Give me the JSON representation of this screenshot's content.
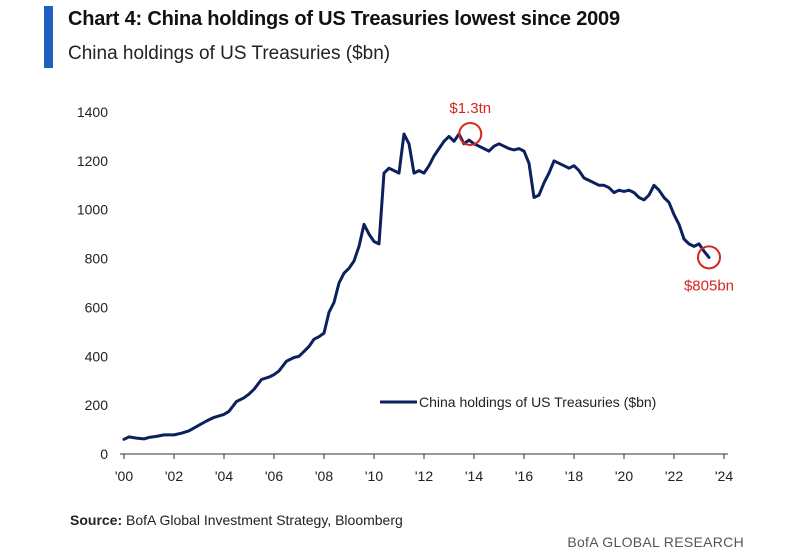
{
  "header": {
    "title": "Chart 4: China holdings of US Treasuries lowest since 2009",
    "subtitle": "China holdings of US Treasuries ($bn)"
  },
  "footer": {
    "source_label": "Source:",
    "source_text": "BofA Global Investment Strategy, Bloomberg",
    "brand": "BofA GLOBAL RESEARCH"
  },
  "colors": {
    "accent": "#1f5fbf",
    "series": "#0c1f5e",
    "annotation": "#d7261e"
  },
  "chart_data": {
    "type": "line",
    "title": "China holdings of US Treasuries lowest since 2009",
    "xlabel": "",
    "ylabel": "China holdings of US Treasuries ($bn)",
    "xlim": [
      2000,
      2024.5
    ],
    "ylim": [
      0,
      1400
    ],
    "yticks": [
      0,
      200,
      400,
      600,
      800,
      1000,
      1200,
      1400
    ],
    "xticks": [
      {
        "value": 2000,
        "label": "'00"
      },
      {
        "value": 2002,
        "label": "'02"
      },
      {
        "value": 2004,
        "label": "'04"
      },
      {
        "value": 2006,
        "label": "'06"
      },
      {
        "value": 2008,
        "label": "'08"
      },
      {
        "value": 2010,
        "label": "'10"
      },
      {
        "value": 2012,
        "label": "'12"
      },
      {
        "value": 2014,
        "label": "'14"
      },
      {
        "value": 2016,
        "label": "'16"
      },
      {
        "value": 2018,
        "label": "'18"
      },
      {
        "value": 2020,
        "label": "'20"
      },
      {
        "value": 2022,
        "label": "'22"
      },
      {
        "value": 2024,
        "label": "'24"
      }
    ],
    "legend": {
      "label": "China holdings of US Treasuries ($bn)",
      "position": "lower-right"
    },
    "series": [
      {
        "name": "China holdings of US Treasuries ($bn)",
        "x": [
          2000.0,
          2000.2,
          2000.5,
          2000.8,
          2001.0,
          2001.3,
          2001.6,
          2002.0,
          2002.3,
          2002.6,
          2003.0,
          2003.3,
          2003.6,
          2004.0,
          2004.2,
          2004.5,
          2004.8,
          2005.0,
          2005.2,
          2005.5,
          2005.8,
          2006.0,
          2006.2,
          2006.5,
          2006.8,
          2007.0,
          2007.2,
          2007.4,
          2007.6,
          2007.8,
          2008.0,
          2008.2,
          2008.4,
          2008.6,
          2008.8,
          2009.0,
          2009.2,
          2009.4,
          2009.6,
          2009.8,
          2010.0,
          2010.2,
          2010.4,
          2010.6,
          2010.8,
          2011.0,
          2011.2,
          2011.4,
          2011.6,
          2011.8,
          2012.0,
          2012.2,
          2012.4,
          2012.6,
          2012.8,
          2013.0,
          2013.2,
          2013.4,
          2013.6,
          2013.8,
          2014.0,
          2014.2,
          2014.4,
          2014.6,
          2014.8,
          2015.0,
          2015.2,
          2015.4,
          2015.6,
          2015.8,
          2016.0,
          2016.2,
          2016.4,
          2016.6,
          2016.8,
          2017.0,
          2017.2,
          2017.4,
          2017.6,
          2017.8,
          2018.0,
          2018.2,
          2018.4,
          2018.6,
          2018.8,
          2019.0,
          2019.2,
          2019.4,
          2019.6,
          2019.8,
          2020.0,
          2020.2,
          2020.4,
          2020.6,
          2020.8,
          2021.0,
          2021.2,
          2021.4,
          2021.6,
          2021.8,
          2022.0,
          2022.2,
          2022.4,
          2022.6,
          2022.8,
          2023.0,
          2023.2,
          2023.4
        ],
        "values": [
          60,
          70,
          65,
          62,
          68,
          72,
          78,
          78,
          85,
          95,
          118,
          135,
          150,
          162,
          175,
          215,
          230,
          245,
          265,
          305,
          315,
          325,
          340,
          380,
          395,
          400,
          420,
          440,
          470,
          480,
          495,
          580,
          620,
          700,
          740,
          760,
          790,
          850,
          940,
          900,
          870,
          860,
          1150,
          1170,
          1160,
          1150,
          1310,
          1270,
          1150,
          1160,
          1150,
          1180,
          1220,
          1250,
          1280,
          1300,
          1280,
          1310,
          1270,
          1285,
          1270,
          1260,
          1250,
          1240,
          1260,
          1270,
          1260,
          1250,
          1245,
          1250,
          1240,
          1190,
          1050,
          1060,
          1110,
          1150,
          1200,
          1190,
          1180,
          1170,
          1180,
          1160,
          1130,
          1120,
          1110,
          1100,
          1100,
          1090,
          1070,
          1080,
          1075,
          1080,
          1070,
          1050,
          1040,
          1060,
          1100,
          1080,
          1050,
          1030,
          980,
          940,
          880,
          860,
          850,
          860,
          830,
          805
        ]
      }
    ],
    "annotations": [
      {
        "label": "$1.3tn",
        "x": 2013.85,
        "y": 1310,
        "position": "above"
      },
      {
        "label": "$805bn",
        "x": 2023.4,
        "y": 805,
        "position": "below"
      }
    ]
  }
}
